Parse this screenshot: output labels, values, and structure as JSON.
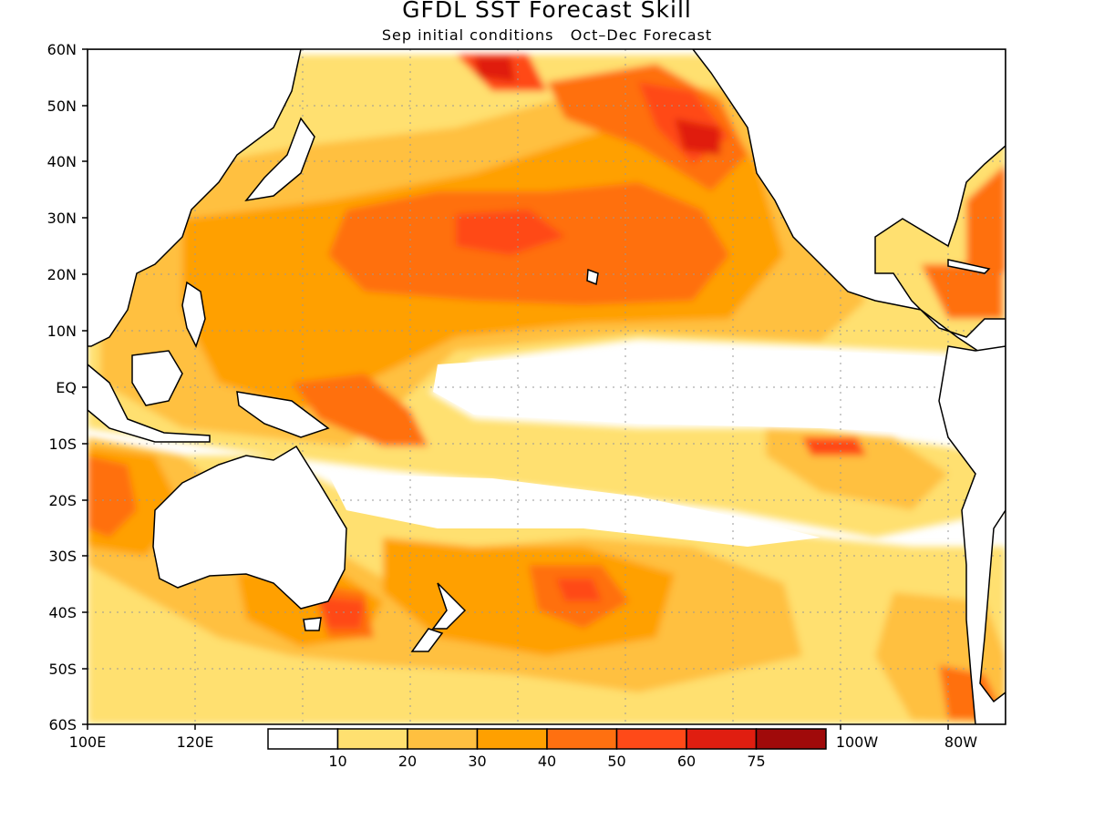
{
  "map": {
    "title": "GFDL SST Forecast Skill",
    "subtitle": "Sep initial conditions   Oct–Dec Forecast",
    "lat_ticks": [
      "60N",
      "50N",
      "40N",
      "30N",
      "20N",
      "10N",
      "EQ",
      "10S",
      "20S",
      "30S",
      "40S",
      "50S",
      "60S"
    ],
    "lon_ticks_visible": [
      "100E",
      "120E",
      "100W",
      "80W"
    ],
    "lon_range": [
      "100E",
      "70W"
    ],
    "lat_range": [
      "60S",
      "60N"
    ],
    "grid": "dotted"
  },
  "colorbar": {
    "labels": [
      "10",
      "20",
      "30",
      "40",
      "50",
      "60",
      "75"
    ],
    "colors": [
      "#ffffff",
      "#ffe070",
      "#ffc040",
      "#ffa000",
      "#ff7010",
      "#ff4a18",
      "#e01e10",
      "#a00a0a"
    ]
  }
}
